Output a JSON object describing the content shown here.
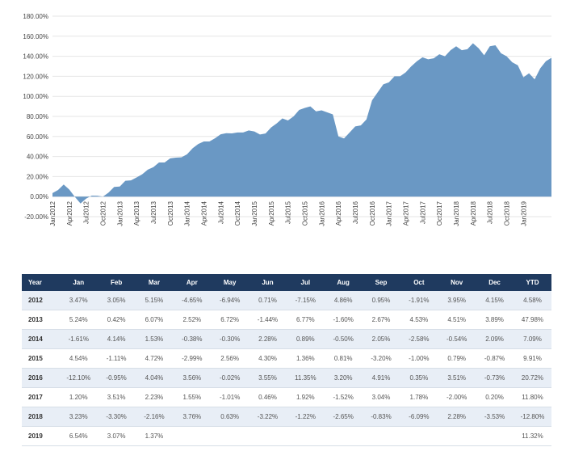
{
  "chart_data": {
    "type": "area",
    "color": "#6a98c4",
    "ylim": [
      -20,
      180
    ],
    "yticks": [
      "-20.00%",
      "0.00%",
      "20.00%",
      "40.00%",
      "60.00%",
      "80.00%",
      "100.00%",
      "120.00%",
      "140.00%",
      "160.00%",
      "180.00%"
    ],
    "xtick_labels": [
      "Jan2012",
      "Apr2012",
      "Jul2012",
      "Oct2012",
      "Jan2013",
      "Apr2013",
      "Jul2013",
      "Oct2013",
      "Jan2014",
      "Apr2014",
      "Jul2014",
      "Oct2014",
      "Jan2015",
      "Apr2015",
      "Jul2015",
      "Oct2015",
      "Jan2016",
      "Apr2016",
      "Jul2016",
      "Oct2016",
      "Jan2017",
      "Apr2017",
      "Jul2017",
      "Oct2017",
      "Jan2018",
      "Apr2018",
      "Jul2018",
      "Oct2018",
      "Jan2019"
    ],
    "x_start": "Jan2012",
    "values": [
      3.5,
      6.6,
      12.1,
      7.0,
      -0.3,
      -6.9,
      -2.1,
      1.0,
      0.9,
      0.0,
      4.0,
      9.6,
      10.0,
      15.8,
      16.2,
      19.1,
      22.2,
      26.9,
      29.4,
      34.0,
      34.0,
      38.2,
      38.9,
      39.2,
      42.2,
      48.2,
      52.5,
      55.0,
      55.0,
      58.2,
      62.2,
      63.3,
      63.1,
      64.0,
      64.0,
      66.0,
      65.0,
      62.0,
      63.0,
      69.0,
      73.0,
      78.0,
      76.0,
      80.0,
      86.5,
      88.5,
      90.0,
      85.0,
      86.0,
      84.0,
      82.0,
      60.0,
      58.0,
      64.0,
      70.0,
      71.0,
      77.0,
      96.0,
      104.0,
      112.0,
      114.0,
      120.0,
      120.0,
      124.0,
      130.0,
      135.0,
      139.0,
      137.0,
      138.0,
      142.0,
      140.0,
      146.0,
      150.0,
      146.0,
      147.0,
      153.0,
      148.0,
      141.0,
      150.0,
      151.0,
      143.0,
      140.0,
      134.0,
      131.0,
      119.0,
      123.0,
      117.0,
      128.0,
      135.0,
      138.5
    ]
  },
  "table": {
    "headers": [
      "Year",
      "Jan",
      "Feb",
      "Mar",
      "Apr",
      "May",
      "Jun",
      "Jul",
      "Aug",
      "Sep",
      "Oct",
      "Nov",
      "Dec",
      "YTD"
    ],
    "rows": [
      [
        "2012",
        "3.47%",
        "3.05%",
        "5.15%",
        "-4.65%",
        "-6.94%",
        "0.71%",
        "-7.15%",
        "4.86%",
        "0.95%",
        "-1.91%",
        "3.95%",
        "4.15%",
        "4.58%"
      ],
      [
        "2013",
        "5.24%",
        "0.42%",
        "6.07%",
        "2.52%",
        "6.72%",
        "-1.44%",
        "6.77%",
        "-1.60%",
        "2.67%",
        "4.53%",
        "4.51%",
        "3.89%",
        "47.98%"
      ],
      [
        "2014",
        "-1.61%",
        "4.14%",
        "1.53%",
        "-0.38%",
        "-0.30%",
        "2.28%",
        "0.89%",
        "-0.50%",
        "2.05%",
        "-2.58%",
        "-0.54%",
        "2.09%",
        "7.09%"
      ],
      [
        "2015",
        "4.54%",
        "-1.11%",
        "4.72%",
        "-2.99%",
        "2.56%",
        "4.30%",
        "1.36%",
        "0.81%",
        "-3.20%",
        "-1.00%",
        "0.79%",
        "-0.87%",
        "9.91%"
      ],
      [
        "2016",
        "-12.10%",
        "-0.95%",
        "4.04%",
        "3.56%",
        "-0.02%",
        "3.55%",
        "11.35%",
        "3.20%",
        "4.91%",
        "0.35%",
        "3.51%",
        "-0.73%",
        "20.72%"
      ],
      [
        "2017",
        "1.20%",
        "3.51%",
        "2.23%",
        "1.55%",
        "-1.01%",
        "0.46%",
        "1.92%",
        "-1.52%",
        "3.04%",
        "1.78%",
        "-2.00%",
        "0.20%",
        "11.80%"
      ],
      [
        "2018",
        "3.23%",
        "-3.30%",
        "-2.16%",
        "3.76%",
        "0.63%",
        "-3.22%",
        "-1.22%",
        "-2.65%",
        "-0.83%",
        "-6.09%",
        "2.28%",
        "-3.53%",
        "-12.80%"
      ],
      [
        "2019",
        "6.54%",
        "3.07%",
        "1.37%",
        "",
        "",
        "",
        "",
        "",
        "",
        "",
        "",
        "",
        "11.32%"
      ]
    ]
  }
}
